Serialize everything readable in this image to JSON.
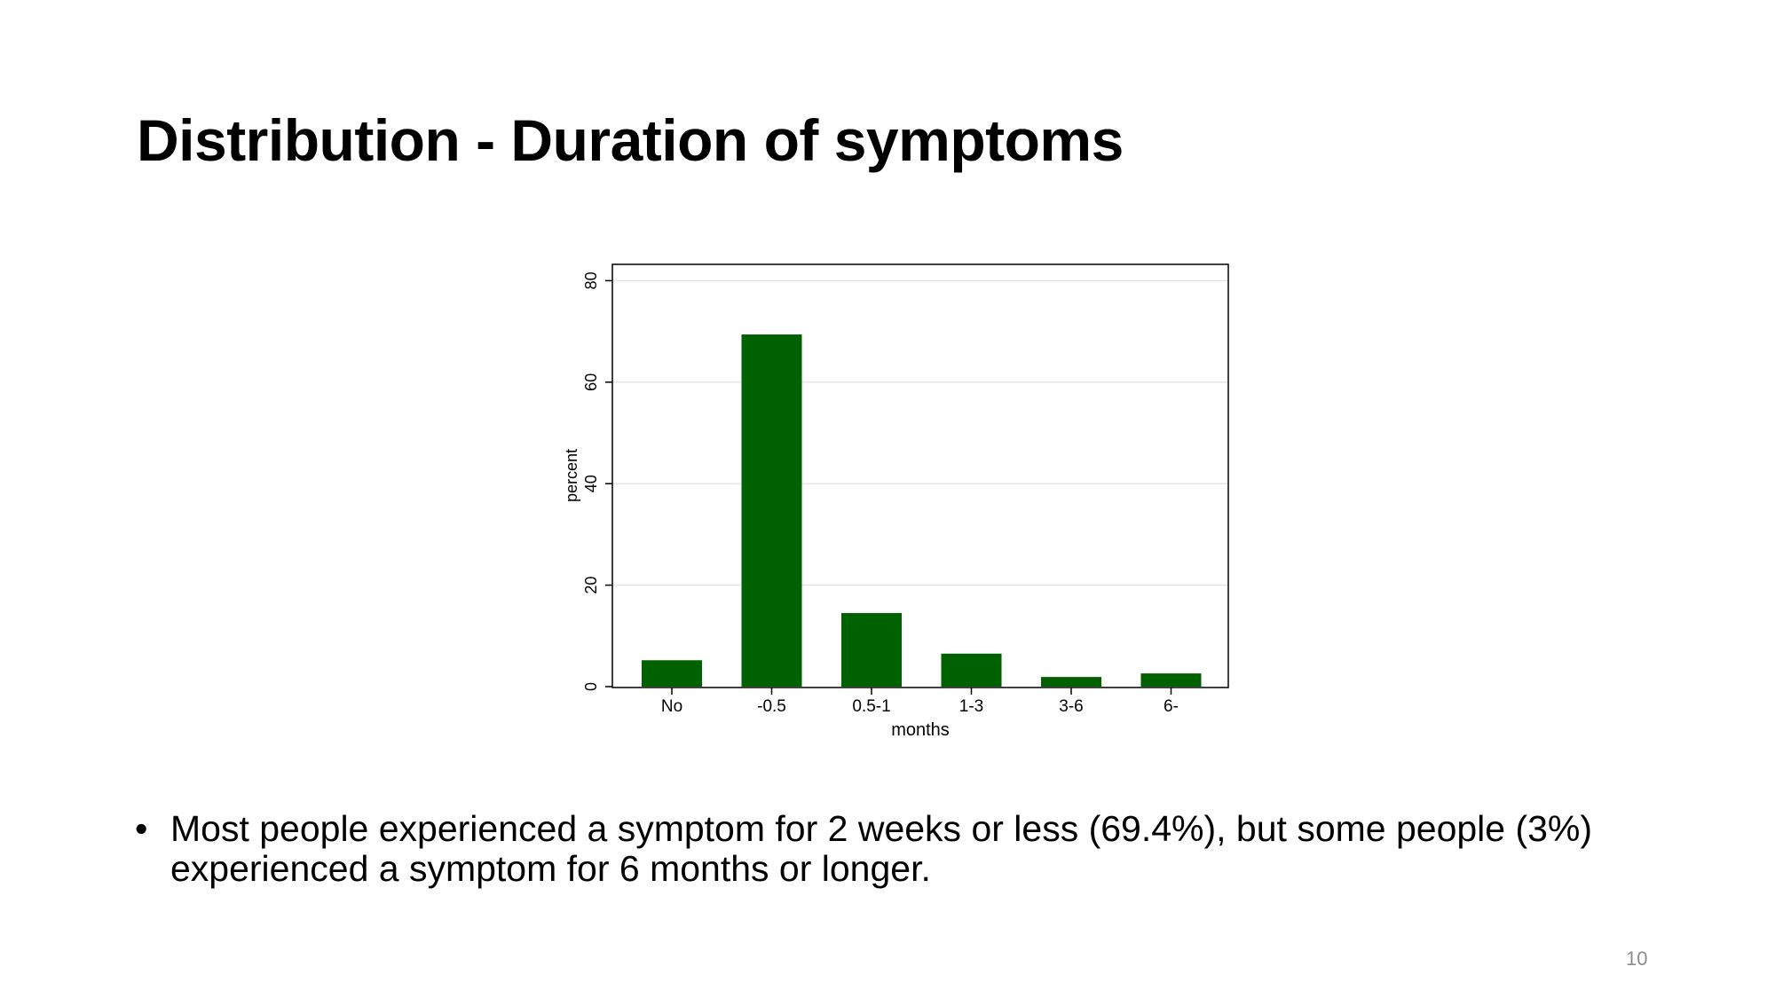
{
  "slide": {
    "title": "Distribution - Duration of symptoms",
    "bullet_symbol": "•",
    "bullet_text": "Most people experienced a symptom for 2 weeks or less (69.4%), but some people (3%) experienced a symptom for 6 months or longer.",
    "page_number": "10"
  },
  "chart_data": {
    "type": "bar",
    "title": "",
    "xlabel": "months",
    "ylabel": "percent",
    "categories": [
      "No",
      "-0.5",
      "0.5-1",
      "1-3",
      "3-6",
      "6-"
    ],
    "values": [
      5.2,
      69.4,
      14.5,
      6.5,
      1.9,
      2.6
    ],
    "ylim": [
      0,
      83
    ],
    "yticks": [
      0,
      20,
      40,
      60,
      80
    ],
    "grid": true,
    "legend": "none",
    "bar_color": "#006100",
    "grid_color": "#e6e6e6"
  }
}
